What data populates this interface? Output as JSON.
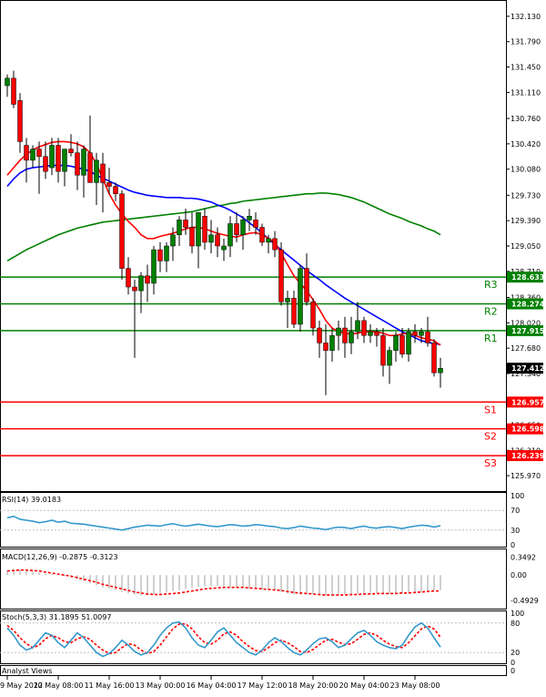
{
  "chart_data": [
    {
      "type": "candlestick",
      "price_axis": {
        "ylim": [
          125.8,
          132.3
        ],
        "ticks": [
          "132.130",
          "131.790",
          "131.450",
          "131.110",
          "130.760",
          "130.420",
          "130.080",
          "129.730",
          "129.390",
          "129.050",
          "128.710",
          "128.360",
          "128.020",
          "127.680",
          "127.340",
          "126.650",
          "126.310",
          "125.970"
        ],
        "tick_values": [
          132.13,
          131.79,
          131.45,
          131.11,
          130.76,
          130.42,
          130.08,
          129.73,
          129.39,
          129.05,
          128.71,
          128.36,
          128.02,
          127.68,
          127.34,
          126.65,
          126.31,
          125.97
        ]
      },
      "x_labels": [
        "9 May 2022",
        "10 May 08:00",
        "11 May 16:00",
        "13 May 00:00",
        "16 May 04:00",
        "17 May 12:00",
        "18 May 20:00",
        "20 May 04:00",
        "23 May 08:00"
      ],
      "colors": {
        "bull": "#008000",
        "bear": "#ff0000",
        "level_green": "#008000",
        "level_red": "#ff0000",
        "ma_fast": "#ff0000",
        "ma_mid": "#0000ff",
        "ma_slow": "#008000"
      },
      "candles": [
        [
          131.2,
          131.35,
          131.05,
          131.3
        ],
        [
          131.3,
          131.4,
          130.9,
          130.95
        ],
        [
          131.0,
          131.1,
          130.3,
          130.45
        ],
        [
          130.4,
          130.5,
          129.9,
          130.2
        ],
        [
          130.2,
          130.4,
          130.1,
          130.35
        ],
        [
          130.35,
          130.45,
          129.75,
          130.25
        ],
        [
          130.25,
          130.45,
          129.95,
          130.05
        ],
        [
          130.1,
          130.5,
          130.0,
          130.4
        ],
        [
          130.4,
          130.5,
          129.9,
          130.05
        ],
        [
          130.05,
          130.35,
          129.85,
          130.35
        ],
        [
          130.35,
          130.55,
          130.25,
          130.3
        ],
        [
          130.3,
          130.45,
          129.8,
          130.0
        ],
        [
          130.0,
          130.4,
          129.7,
          130.35
        ],
        [
          130.3,
          130.8,
          129.9,
          129.9
        ],
        [
          129.9,
          130.3,
          129.6,
          130.2
        ],
        [
          130.15,
          130.3,
          129.5,
          129.9
        ],
        [
          129.9,
          130.1,
          129.75,
          129.85
        ],
        [
          129.85,
          129.9,
          129.65,
          129.75
        ],
        [
          129.75,
          129.8,
          128.6,
          128.75
        ],
        [
          128.75,
          128.9,
          128.4,
          128.5
        ],
        [
          128.5,
          128.6,
          127.55,
          128.45
        ],
        [
          128.45,
          128.7,
          128.15,
          128.65
        ],
        [
          128.65,
          128.8,
          128.3,
          128.55
        ],
        [
          128.55,
          129.05,
          128.4,
          129.0
        ],
        [
          129.0,
          129.1,
          128.7,
          128.85
        ],
        [
          128.85,
          129.1,
          128.7,
          129.05
        ],
        [
          129.05,
          129.3,
          128.85,
          129.2
        ],
        [
          129.2,
          129.45,
          129.05,
          129.4
        ],
        [
          129.4,
          129.55,
          129.2,
          129.3
        ],
        [
          129.3,
          129.5,
          128.95,
          129.05
        ],
        [
          129.05,
          129.5,
          128.75,
          129.5
        ],
        [
          129.45,
          129.55,
          129.0,
          129.1
        ],
        [
          129.1,
          129.4,
          128.95,
          129.2
        ],
        [
          129.2,
          129.3,
          128.9,
          129.05
        ],
        [
          129.0,
          129.15,
          128.85,
          129.05
        ],
        [
          129.05,
          129.45,
          128.9,
          129.35
        ],
        [
          129.35,
          129.5,
          129.1,
          129.2
        ],
        [
          129.2,
          129.45,
          129.0,
          129.4
        ],
        [
          129.4,
          129.55,
          129.25,
          129.45
        ],
        [
          129.4,
          129.5,
          129.2,
          129.3
        ],
        [
          129.3,
          129.35,
          129.05,
          129.1
        ],
        [
          129.1,
          129.2,
          128.95,
          129.15
        ],
        [
          129.15,
          129.25,
          128.9,
          129.0
        ],
        [
          129.0,
          129.1,
          128.25,
          128.3
        ],
        [
          128.3,
          128.45,
          127.95,
          128.35
        ],
        [
          128.35,
          128.45,
          127.95,
          128.0
        ],
        [
          128.0,
          128.8,
          127.9,
          128.75
        ],
        [
          128.75,
          128.95,
          128.25,
          128.3
        ],
        [
          128.3,
          128.35,
          127.85,
          127.95
        ],
        [
          127.95,
          128.05,
          127.55,
          127.75
        ],
        [
          127.75,
          128.0,
          127.05,
          127.65
        ],
        [
          127.65,
          127.95,
          127.5,
          127.85
        ],
        [
          127.85,
          128.05,
          127.65,
          127.95
        ],
        [
          127.95,
          128.1,
          127.55,
          127.75
        ],
        [
          127.75,
          128.1,
          127.6,
          127.9
        ],
        [
          127.9,
          128.3,
          127.8,
          128.05
        ],
        [
          128.05,
          128.1,
          127.75,
          127.85
        ],
        [
          127.85,
          128.0,
          127.75,
          127.9
        ],
        [
          127.9,
          127.95,
          127.7,
          127.85
        ],
        [
          127.85,
          127.95,
          127.3,
          127.45
        ],
        [
          127.45,
          127.7,
          127.2,
          127.65
        ],
        [
          127.65,
          127.9,
          127.5,
          127.85
        ],
        [
          127.85,
          127.95,
          127.55,
          127.6
        ],
        [
          127.6,
          127.95,
          127.5,
          127.9
        ],
        [
          127.9,
          128.0,
          127.75,
          127.85
        ],
        [
          127.85,
          127.95,
          127.75,
          127.9
        ],
        [
          127.9,
          128.1,
          127.7,
          127.75
        ],
        [
          127.75,
          127.8,
          127.3,
          127.35
        ],
        [
          127.35,
          127.55,
          127.15,
          127.41
        ]
      ],
      "ma_fast": [
        130.0,
        130.1,
        130.2,
        130.28,
        130.34,
        130.38,
        130.41,
        130.44,
        130.45,
        130.45,
        130.44,
        130.42,
        130.38,
        130.3,
        130.15,
        129.95,
        129.75,
        129.6,
        129.48,
        129.38,
        129.3,
        129.2,
        129.15,
        129.15,
        129.18,
        129.2,
        129.22,
        129.25,
        129.28,
        129.3,
        129.3,
        129.28,
        129.25,
        129.22,
        129.2,
        129.18,
        129.17,
        129.2,
        129.22,
        129.23,
        129.2,
        129.15,
        129.1,
        128.95,
        128.8,
        128.65,
        128.55,
        128.45,
        128.33,
        128.2,
        128.05,
        127.95,
        127.9,
        127.88,
        127.87,
        127.88,
        127.9,
        127.9,
        127.9,
        127.88,
        127.85,
        127.85,
        127.87,
        127.88,
        127.85,
        127.82,
        127.8,
        127.78,
        127.72
      ],
      "ma_mid": [
        129.85,
        129.95,
        130.03,
        130.08,
        130.1,
        130.11,
        130.12,
        130.13,
        130.13,
        130.13,
        130.12,
        130.1,
        130.08,
        130.05,
        130.0,
        129.96,
        129.92,
        129.88,
        129.84,
        129.8,
        129.77,
        129.75,
        129.73,
        129.72,
        129.71,
        129.7,
        129.7,
        129.7,
        129.69,
        129.69,
        129.68,
        129.66,
        129.64,
        129.6,
        129.57,
        129.53,
        129.48,
        129.43,
        129.36,
        129.3,
        129.22,
        129.15,
        129.07,
        129.0,
        128.93,
        128.86,
        128.79,
        128.72,
        128.66,
        128.6,
        128.53,
        128.47,
        128.41,
        128.35,
        128.3,
        128.25,
        128.2,
        128.15,
        128.1,
        128.05,
        128.0,
        127.95,
        127.9,
        127.86,
        127.82,
        127.78,
        127.76,
        127.74,
        127.73
      ],
      "ma_slow": [
        128.85,
        128.9,
        128.95,
        129.0,
        129.04,
        129.08,
        129.12,
        129.16,
        129.2,
        129.23,
        129.26,
        129.29,
        129.31,
        129.33,
        129.35,
        129.37,
        129.38,
        129.39,
        129.4,
        129.41,
        129.42,
        129.43,
        129.44,
        129.45,
        129.46,
        129.47,
        129.48,
        129.49,
        129.5,
        129.51,
        129.53,
        129.55,
        129.57,
        129.59,
        129.6,
        129.62,
        129.63,
        129.65,
        129.66,
        129.67,
        129.68,
        129.69,
        129.7,
        129.71,
        129.72,
        129.73,
        129.74,
        129.75,
        129.75,
        129.76,
        129.76,
        129.75,
        129.74,
        129.72,
        129.7,
        129.67,
        129.64,
        129.6,
        129.56,
        129.52,
        129.48,
        129.45,
        129.42,
        129.38,
        129.35,
        129.32,
        129.28,
        129.25,
        129.2
      ],
      "levels": [
        {
          "label": "R3",
          "value": 128.633,
          "tag": "128.633",
          "color": "green"
        },
        {
          "label": "R2",
          "value": 128.274,
          "tag": "128.274",
          "color": "green"
        },
        {
          "label": "R1",
          "value": 127.915,
          "tag": "127.915",
          "color": "green"
        },
        {
          "label": "S1",
          "value": 126.957,
          "tag": "126.957",
          "color": "red"
        },
        {
          "label": "S2",
          "value": 126.598,
          "tag": "126.598",
          "color": "red"
        },
        {
          "label": "S3",
          "value": 126.239,
          "tag": "126.239",
          "color": "red"
        }
      ],
      "current_price": {
        "value": 127.412,
        "tag": "127.412"
      }
    },
    {
      "type": "line",
      "name": "RSI",
      "label": "RSI(14) 39.0183",
      "ticks": [
        "100",
        "70",
        "30",
        "0"
      ],
      "tick_values": [
        100,
        70,
        30,
        0
      ],
      "ylim": [
        0,
        100
      ],
      "color": "#3399cc",
      "values": [
        55,
        58,
        52,
        50,
        48,
        45,
        47,
        50,
        46,
        48,
        44,
        43,
        42,
        40,
        38,
        36,
        34,
        32,
        30,
        33,
        36,
        38,
        40,
        39,
        38,
        41,
        43,
        40,
        38,
        40,
        42,
        40,
        38,
        37,
        39,
        41,
        40,
        38,
        39,
        41,
        40,
        38,
        37,
        34,
        33,
        35,
        38,
        36,
        34,
        33,
        31,
        34,
        36,
        35,
        33,
        36,
        38,
        35,
        34,
        36,
        37,
        35,
        33,
        36,
        38,
        40,
        39,
        36,
        39
      ]
    },
    {
      "type": "bar+line",
      "name": "MACD",
      "label": "MACD(12,26,9) -0.2875 -0.3123",
      "ticks": [
        "0.3492",
        "0.00",
        "-0.4929"
      ],
      "tick_values": [
        0.3492,
        0.0,
        -0.4929
      ],
      "ylim": [
        -0.62,
        0.45
      ],
      "histogram_color": "#c0c0c0",
      "signal_color": "#ff0000",
      "histogram": [
        0.1,
        0.12,
        0.11,
        0.09,
        0.07,
        0.05,
        0.03,
        0.02,
        0.0,
        -0.02,
        -0.05,
        -0.08,
        -0.12,
        -0.16,
        -0.2,
        -0.24,
        -0.27,
        -0.3,
        -0.33,
        -0.36,
        -0.38,
        -0.4,
        -0.4,
        -0.38,
        -0.36,
        -0.34,
        -0.31,
        -0.29,
        -0.27,
        -0.25,
        -0.23,
        -0.22,
        -0.21,
        -0.21,
        -0.22,
        -0.23,
        -0.24,
        -0.25,
        -0.26,
        -0.27,
        -0.28,
        -0.29,
        -0.3,
        -0.33,
        -0.36,
        -0.38,
        -0.38,
        -0.38,
        -0.38,
        -0.39,
        -0.4,
        -0.4,
        -0.39,
        -0.38,
        -0.38,
        -0.37,
        -0.36,
        -0.35,
        -0.35,
        -0.36,
        -0.37,
        -0.37,
        -0.36,
        -0.35,
        -0.34,
        -0.33,
        -0.31,
        -0.3,
        -0.29
      ],
      "signal": [
        0.08,
        0.09,
        0.1,
        0.1,
        0.09,
        0.08,
        0.06,
        0.04,
        0.02,
        0.0,
        -0.02,
        -0.05,
        -0.08,
        -0.11,
        -0.14,
        -0.18,
        -0.21,
        -0.24,
        -0.27,
        -0.3,
        -0.33,
        -0.35,
        -0.37,
        -0.38,
        -0.38,
        -0.37,
        -0.36,
        -0.35,
        -0.33,
        -0.31,
        -0.29,
        -0.27,
        -0.26,
        -0.25,
        -0.24,
        -0.24,
        -0.24,
        -0.24,
        -0.25,
        -0.26,
        -0.27,
        -0.28,
        -0.29,
        -0.3,
        -0.32,
        -0.34,
        -0.35,
        -0.36,
        -0.37,
        -0.38,
        -0.39,
        -0.39,
        -0.39,
        -0.39,
        -0.38,
        -0.38,
        -0.37,
        -0.37,
        -0.36,
        -0.36,
        -0.36,
        -0.36,
        -0.35,
        -0.35,
        -0.34,
        -0.33,
        -0.32,
        -0.31,
        -0.31
      ]
    },
    {
      "type": "line",
      "name": "Stoch",
      "label": "Stoch(5,3,3) 31.1895 51.0097",
      "ticks": [
        "100",
        "80",
        "20",
        "0"
      ],
      "tick_values": [
        100,
        80,
        20,
        0
      ],
      "ylim": [
        0,
        100
      ],
      "main_color": "#3399cc",
      "signal_color": "#ff0000",
      "main": [
        70,
        55,
        35,
        25,
        30,
        45,
        60,
        55,
        40,
        30,
        45,
        60,
        50,
        35,
        20,
        12,
        18,
        30,
        45,
        35,
        22,
        15,
        20,
        35,
        55,
        70,
        80,
        82,
        70,
        50,
        35,
        30,
        45,
        62,
        70,
        55,
        40,
        30,
        20,
        15,
        25,
        40,
        50,
        42,
        30,
        20,
        15,
        25,
        38,
        48,
        50,
        42,
        30,
        35,
        48,
        60,
        65,
        55,
        42,
        35,
        30,
        28,
        35,
        55,
        72,
        80,
        70,
        50,
        31
      ],
      "signal": [
        75,
        65,
        50,
        38,
        30,
        35,
        48,
        55,
        50,
        42,
        40,
        48,
        52,
        47,
        35,
        25,
        18,
        20,
        30,
        38,
        35,
        25,
        18,
        22,
        35,
        52,
        68,
        78,
        78,
        68,
        52,
        40,
        37,
        45,
        58,
        62,
        55,
        42,
        32,
        24,
        22,
        30,
        40,
        45,
        40,
        32,
        22,
        20,
        26,
        36,
        45,
        47,
        41,
        36,
        38,
        47,
        57,
        60,
        55,
        45,
        37,
        32,
        30,
        40,
        54,
        68,
        74,
        68,
        51
      ]
    },
    {
      "type": "other",
      "name": "Analyst Views",
      "label": "Analyst Views"
    }
  ]
}
